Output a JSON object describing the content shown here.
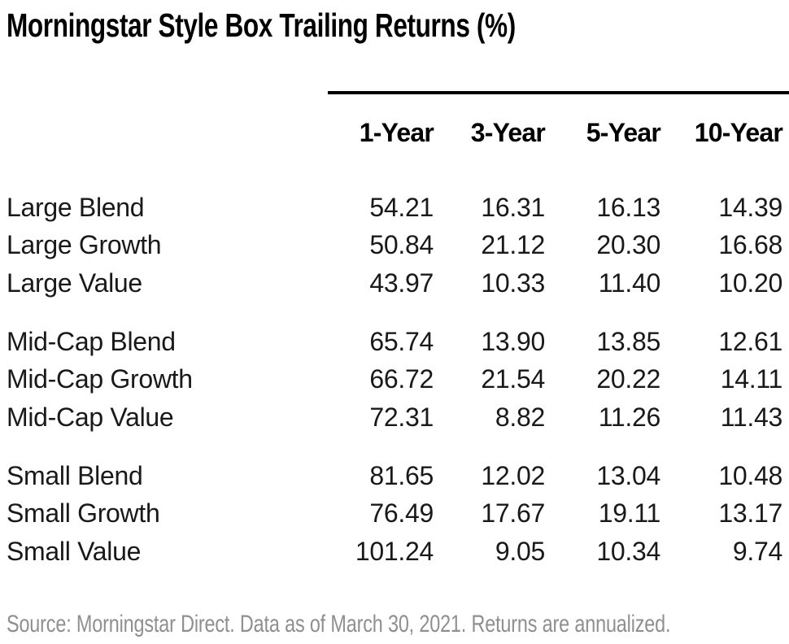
{
  "title": "Morningstar Style Box Trailing Returns (%)",
  "table": {
    "columns": [
      "1-Year",
      "3-Year",
      "5-Year",
      "10-Year"
    ],
    "rows": [
      {
        "label": "Large Blend",
        "values": [
          "54.21",
          "16.31",
          "16.13",
          "14.39"
        ]
      },
      {
        "label": "Large Growth",
        "values": [
          "50.84",
          "21.12",
          "20.30",
          "16.68"
        ]
      },
      {
        "label": "Large Value",
        "values": [
          "43.97",
          "10.33",
          "11.40",
          "10.20"
        ]
      },
      {
        "label": "Mid-Cap Blend",
        "values": [
          "65.74",
          "13.90",
          "13.85",
          "12.61"
        ]
      },
      {
        "label": "Mid-Cap Growth",
        "values": [
          "66.72",
          "21.54",
          "20.22",
          "14.11"
        ]
      },
      {
        "label": "Mid-Cap Value",
        "values": [
          "72.31",
          "8.82",
          "11.26",
          "11.43"
        ]
      },
      {
        "label": "Small Blend",
        "values": [
          "81.65",
          "12.02",
          "13.04",
          "10.48"
        ]
      },
      {
        "label": "Small Growth",
        "values": [
          "76.49",
          "17.67",
          "19.11",
          "13.17"
        ]
      },
      {
        "label": "Small Value",
        "values": [
          "101.24",
          "9.05",
          "10.34",
          "9.74"
        ]
      }
    ]
  },
  "footer": "Source: Morningstar Direct. Data as of March 30, 2021. Returns are annualized.",
  "colors": {
    "title": "#000000",
    "body_text": "#191919",
    "rule": "#000000",
    "footer_text": "#8f8f8f",
    "background": "#ffffff"
  },
  "chart_data": {
    "type": "table",
    "title": "Morningstar Style Box Trailing Returns (%)",
    "columns": [
      "1-Year",
      "3-Year",
      "5-Year",
      "10-Year"
    ],
    "row_groups": [
      [
        "Large Blend",
        "Large Growth",
        "Large Value"
      ],
      [
        "Mid-Cap Blend",
        "Mid-Cap Growth",
        "Mid-Cap Value"
      ],
      [
        "Small Blend",
        "Small Growth",
        "Small Value"
      ]
    ],
    "series": [
      {
        "name": "Large Blend",
        "values": [
          54.21,
          16.31,
          16.13,
          14.39
        ]
      },
      {
        "name": "Large Growth",
        "values": [
          50.84,
          21.12,
          20.3,
          16.68
        ]
      },
      {
        "name": "Large Value",
        "values": [
          43.97,
          10.33,
          11.4,
          10.2
        ]
      },
      {
        "name": "Mid-Cap Blend",
        "values": [
          65.74,
          13.9,
          13.85,
          12.61
        ]
      },
      {
        "name": "Mid-Cap Growth",
        "values": [
          66.72,
          21.54,
          20.22,
          14.11
        ]
      },
      {
        "name": "Mid-Cap Value",
        "values": [
          72.31,
          8.82,
          11.26,
          11.43
        ]
      },
      {
        "name": "Small Blend",
        "values": [
          81.65,
          12.02,
          13.04,
          10.48
        ]
      },
      {
        "name": "Small Growth",
        "values": [
          76.49,
          17.67,
          19.11,
          13.17
        ]
      },
      {
        "name": "Small Value",
        "values": [
          101.24,
          9.05,
          10.34,
          9.74
        ]
      }
    ],
    "units": "percent, annualized returns",
    "source_note": "Source: Morningstar Direct. Data as of March 30, 2021. Returns are annualized."
  }
}
